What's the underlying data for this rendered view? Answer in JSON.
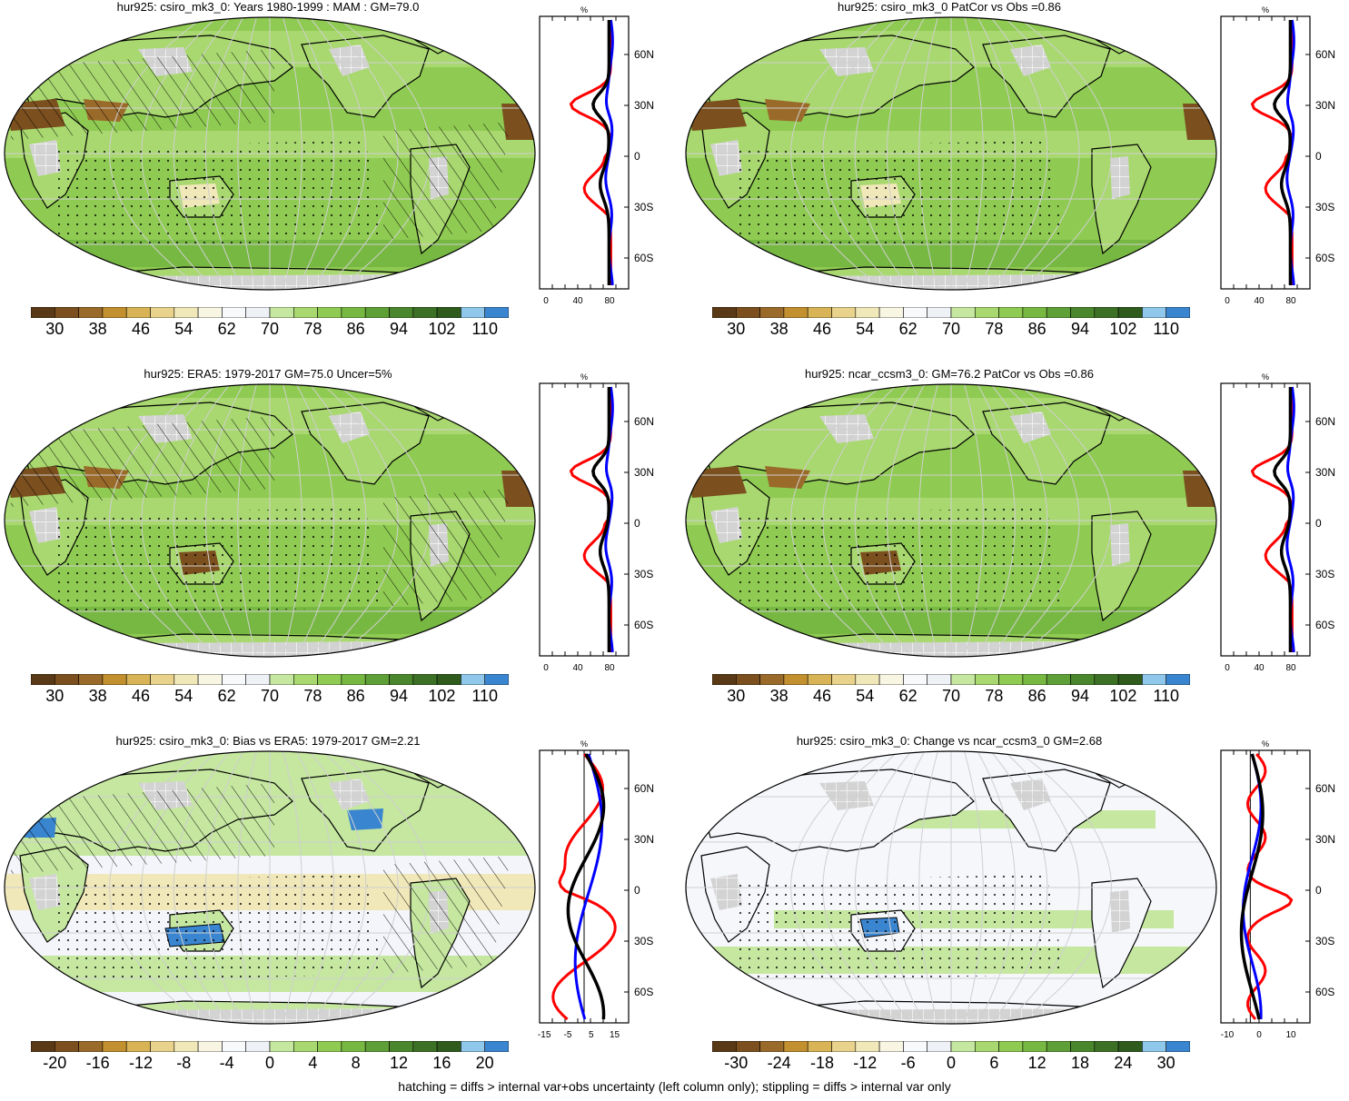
{
  "panels": [
    {
      "id": "p1",
      "title": "hur925: csiro_mk3_0: Years 1980-1999 : MAM : GM=79.0",
      "kind": "abs",
      "hatch": true,
      "stipple": true,
      "profile": {
        "unit": "%",
        "xticks": [
          "0",
          "40",
          "80"
        ],
        "lat_labels": [
          "60N",
          "30N",
          "0",
          "30S",
          "60S"
        ]
      }
    },
    {
      "id": "p2",
      "title": "hur925: csiro_mk3_0 PatCor vs Obs =0.86",
      "kind": "abs",
      "hatch": false,
      "stipple": true,
      "profile": {
        "unit": "%",
        "xticks": [
          "0",
          "40",
          "80"
        ],
        "lat_labels": [
          "60N",
          "30N",
          "0",
          "30S",
          "60S"
        ]
      }
    },
    {
      "id": "p3",
      "title": "hur925: ERA5: 1979-2017 GM=75.0 Uncer=5%",
      "kind": "abs",
      "hatch": true,
      "stipple": true,
      "profile": {
        "unit": "%",
        "xticks": [
          "0",
          "40",
          "80"
        ],
        "lat_labels": [
          "60N",
          "30N",
          "0",
          "30S",
          "60S"
        ]
      }
    },
    {
      "id": "p4",
      "title": "hur925: ncar_ccsm3_0: GM=76.2 PatCor vs Obs =0.86",
      "kind": "abs",
      "hatch": false,
      "stipple": true,
      "profile": {
        "unit": "%",
        "xticks": [
          "0",
          "40",
          "80"
        ],
        "lat_labels": [
          "60N",
          "30N",
          "0",
          "30S",
          "60S"
        ]
      }
    },
    {
      "id": "p5",
      "title": "hur925: csiro_mk3_0: Bias vs ERA5: 1979-2017 GM=2.21",
      "kind": "bias",
      "hatch": true,
      "stipple": true,
      "profile": {
        "unit": "%",
        "xticks": [
          "-15",
          "-5",
          "5",
          "15"
        ],
        "lat_labels": [
          "60N",
          "30N",
          "0",
          "30S",
          "60S"
        ]
      }
    },
    {
      "id": "p6",
      "title": "hur925: csiro_mk3_0: Change vs ncar_ccsm3_0 GM=2.68",
      "kind": "change",
      "hatch": false,
      "stipple": true,
      "profile": {
        "unit": "%",
        "xticks": [
          "-10",
          "0",
          "10"
        ],
        "lat_labels": [
          "60N",
          "30N",
          "0",
          "30S",
          "60S"
        ]
      }
    }
  ],
  "colorbars": {
    "abs": {
      "labels": [
        "30",
        "38",
        "46",
        "54",
        "62",
        "70",
        "78",
        "86",
        "94",
        "102",
        "110"
      ]
    },
    "bias": {
      "labels": [
        "-20",
        "-16",
        "-12",
        "-8",
        "-4",
        "0",
        "4",
        "8",
        "12",
        "16",
        "20"
      ]
    },
    "change": {
      "labels": [
        "-30",
        "-24",
        "-18",
        "-12",
        "-6",
        "0",
        "6",
        "12",
        "18",
        "24",
        "30"
      ]
    }
  },
  "palette": [
    "#5a3a16",
    "#7b4f1e",
    "#9a6a2a",
    "#c2902f",
    "#d9b457",
    "#e8d28c",
    "#f1e8b9",
    "#f8f6e3",
    "#f7f9fb",
    "#eef2f7",
    "#c5e7a0",
    "#a8d86f",
    "#8fcb52",
    "#77b843",
    "#5f9f37",
    "#4a862c",
    "#3c7025",
    "#2f5c1d",
    "#90c8ec",
    "#3a85d0"
  ],
  "lines": {
    "model": "#ff0000",
    "obs": "#0000ff",
    "mean": "#000000"
  },
  "footer": "hatching = diffs > internal var+obs uncertainty (left column only); stippling = diffs > internal var only"
}
